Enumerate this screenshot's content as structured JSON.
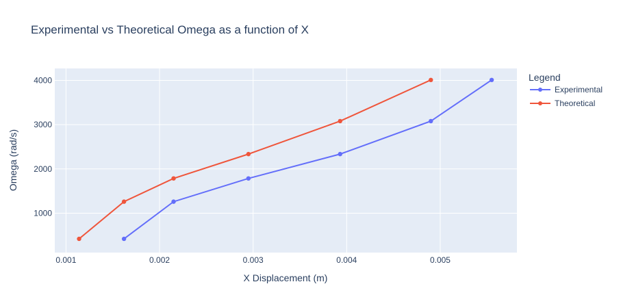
{
  "chart_data": {
    "type": "line",
    "title": "Experimental vs Theoretical Omega as a function of X",
    "xlabel": "X Displacement (m)",
    "ylabel": "Omega (rad/s)",
    "xlim": [
      0.00088,
      0.00582
    ],
    "ylim": [
      110,
      4270
    ],
    "x_ticks": [
      0.001,
      0.002,
      0.003,
      0.004,
      0.005
    ],
    "x_tick_labels": [
      "0.001",
      "0.002",
      "0.003",
      "0.004",
      "0.005"
    ],
    "y_ticks": [
      1000,
      2000,
      3000,
      4000
    ],
    "y_tick_labels": [
      "1000",
      "2000",
      "3000",
      "4000"
    ],
    "grid": true,
    "legend_title": "Legend",
    "legend_position": "right",
    "series": [
      {
        "name": "Experimental",
        "color": "#636efa",
        "x": [
          0.00162,
          0.00215,
          0.00295,
          0.00393,
          0.0049,
          0.00555
        ],
        "y": [
          420,
          1260,
          1785,
          2335,
          3080,
          4010
        ]
      },
      {
        "name": "Theoretical",
        "color": "#ef553b",
        "x": [
          0.00114,
          0.00162,
          0.00215,
          0.00295,
          0.00393,
          0.0049
        ],
        "y": [
          420,
          1260,
          1785,
          2335,
          3080,
          4010
        ]
      }
    ]
  }
}
